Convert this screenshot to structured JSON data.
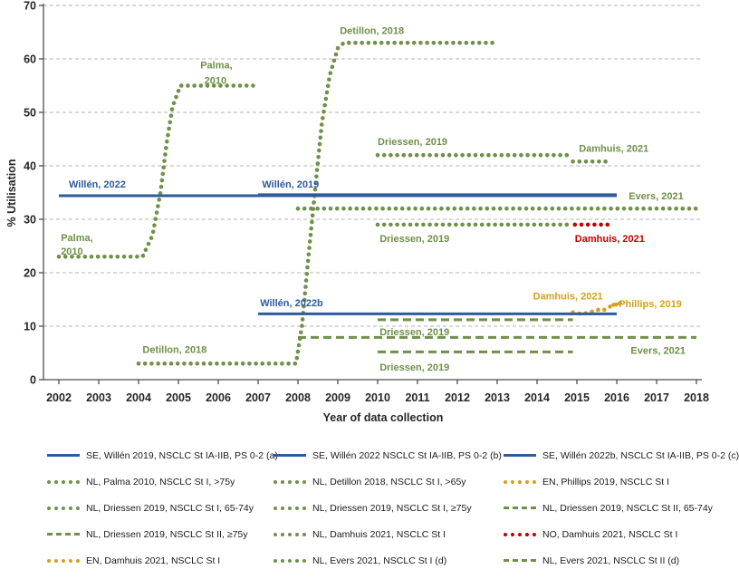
{
  "colors": {
    "blue": "#2E5B9C",
    "green": "#6F9048",
    "red": "#C00000",
    "orange": "#D3A01E",
    "grid": "#B3B3B3",
    "axis": "#4D4D4D",
    "text": "#262626"
  },
  "chart_data": {
    "type": "line",
    "title": "",
    "xlabel": "Year of data collection",
    "ylabel": "% Utilisation",
    "xlim": [
      2002,
      2018
    ],
    "ylim": [
      0,
      70
    ],
    "x_ticks": [
      2002,
      2003,
      2004,
      2005,
      2006,
      2007,
      2008,
      2009,
      2010,
      2011,
      2012,
      2013,
      2014,
      2015,
      2016,
      2017,
      2018
    ],
    "y_ticks": [
      0,
      10,
      20,
      30,
      40,
      50,
      60,
      70
    ],
    "grid": "horizontal-dashed",
    "legend_position": "bottom",
    "series": [
      {
        "name": "NL, Evers 2021, NSCLC St I (d)",
        "color": "green",
        "style": "dotted",
        "points": [
          [
            2008,
            32
          ],
          [
            2018,
            32
          ]
        ]
      },
      {
        "name": "NL, Evers 2021, NSCLC St II (d)",
        "color": "green",
        "style": "dashed",
        "points": [
          [
            2008,
            7.9
          ],
          [
            2018,
            7.9
          ]
        ]
      },
      {
        "name": "NL, Palma 2010, NSCLC St I, >75y",
        "color": "green",
        "style": "dotted",
        "points": [
          [
            2002,
            23
          ],
          [
            2004.1,
            23
          ],
          [
            2004.35,
            27
          ],
          [
            2004.55,
            35
          ],
          [
            2004.7,
            44
          ],
          [
            2004.85,
            51
          ],
          [
            2005.05,
            55
          ],
          [
            2007,
            55
          ]
        ]
      },
      {
        "name": "NL, Detillon 2018, NSCLC St I, >65y",
        "color": "green",
        "style": "dotted",
        "points": [
          [
            2004,
            3
          ],
          [
            2007.95,
            3
          ],
          [
            2008.1,
            10
          ],
          [
            2008.25,
            22
          ],
          [
            2008.45,
            37
          ],
          [
            2008.6,
            48
          ],
          [
            2008.8,
            57
          ],
          [
            2009,
            62
          ],
          [
            2009.15,
            63
          ],
          [
            2013,
            63
          ]
        ]
      },
      {
        "name": "NL, Driessen 2019, NSCLC St I, 65-74y",
        "color": "green",
        "style": "dotted",
        "points": [
          [
            2010,
            42
          ],
          [
            2014.85,
            42
          ]
        ]
      },
      {
        "name": "NL, Driessen 2019, NSCLC St I, ≥75y",
        "color": "green",
        "style": "dotted",
        "points": [
          [
            2010,
            29
          ],
          [
            2014.9,
            29
          ]
        ]
      },
      {
        "name": "NL, Driessen 2019, NSCLC St II, 65-74y",
        "color": "green",
        "style": "dashed",
        "points": [
          [
            2010,
            11.2
          ],
          [
            2014.9,
            11.2
          ]
        ]
      },
      {
        "name": "NL, Driessen 2019, NSCLC St II, ≥75y",
        "color": "green",
        "style": "dashed",
        "points": [
          [
            2010,
            5.2
          ],
          [
            2014.9,
            5.2
          ]
        ]
      },
      {
        "name": "NL, Damhuis 2021, NSCLC St I",
        "color": "green",
        "style": "dotted",
        "points": [
          [
            2014.9,
            40.8
          ],
          [
            2015.85,
            40.8
          ]
        ]
      },
      {
        "name": "NO, Damhuis 2021, NSCLC St I",
        "color": "red",
        "style": "dotted",
        "points": [
          [
            2014.95,
            29
          ],
          [
            2015.85,
            29
          ]
        ]
      },
      {
        "name": "EN, Damhuis 2021, NSCLC St I",
        "color": "orange",
        "style": "dotted",
        "points": [
          [
            2014.9,
            12.6
          ],
          [
            2015.1,
            12.3
          ],
          [
            2015.3,
            12.5
          ],
          [
            2015.5,
            13.1
          ],
          [
            2015.65,
            12.9
          ],
          [
            2015.8,
            13.6
          ],
          [
            2016,
            14.1
          ]
        ]
      },
      {
        "name": "EN, Phillips 2019, NSCLC St I",
        "color": "orange",
        "style": "dotted",
        "points": [
          [
            2015.92,
            14.0
          ],
          [
            2016.15,
            14.4
          ]
        ]
      },
      {
        "name": "SE, Willén 2022 NSCLC St IA-IIB, PS 0-2 (b)",
        "color": "blue",
        "style": "solid",
        "points": [
          [
            2002,
            34.4
          ],
          [
            2016,
            34.4
          ]
        ]
      },
      {
        "name": "SE, Willén 2019, NSCLC St IA-IIB, PS 0-2 (a)",
        "color": "blue",
        "style": "solid",
        "points": [
          [
            2007,
            34.6
          ],
          [
            2016,
            34.6
          ]
        ]
      },
      {
        "name": "SE, Willén 2022b, NSCLC St IA-IIB, PS 0-2 (c)",
        "color": "blue",
        "style": "solid",
        "points": [
          [
            2007,
            12.3
          ],
          [
            2016,
            12.3
          ]
        ]
      }
    ],
    "annotations": [
      {
        "text": "Willén, 2022",
        "x": 2002.25,
        "y": 36.6,
        "color": "blue"
      },
      {
        "text": "Willén, 2019",
        "x": 2007.1,
        "y": 36.6,
        "color": "blue"
      },
      {
        "text": "Willén, 2022b",
        "x": 2007.05,
        "y": 14.4,
        "color": "blue"
      },
      {
        "text": "Palma,",
        "x": 2002.05,
        "y": 26.6,
        "color": "green"
      },
      {
        "text": "2010",
        "x": 2002.05,
        "y": 24.1,
        "color": "green"
      },
      {
        "text": "Palma,",
        "x": 2005.55,
        "y": 58.9,
        "color": "green"
      },
      {
        "text": "2010",
        "x": 2005.65,
        "y": 56.0,
        "color": "green"
      },
      {
        "text": "Detillon, 2018",
        "x": 2009.05,
        "y": 65.3,
        "color": "green"
      },
      {
        "text": "Detillon, 2018",
        "x": 2004.1,
        "y": 5.7,
        "color": "green"
      },
      {
        "text": "Driessen, 2019",
        "x": 2010.0,
        "y": 44.6,
        "color": "green"
      },
      {
        "text": "Damhuis, 2021",
        "x": 2015.05,
        "y": 43.3,
        "color": "green"
      },
      {
        "text": "Evers, 2021",
        "x": 2016.3,
        "y": 34.4,
        "color": "green"
      },
      {
        "text": "Driessen, 2019",
        "x": 2010.05,
        "y": 26.4,
        "color": "green"
      },
      {
        "text": "Damhuis, 2021",
        "x": 2014.95,
        "y": 26.4,
        "color": "red"
      },
      {
        "text": "Damhuis, 2021",
        "x": 2013.9,
        "y": 15.7,
        "color": "orange"
      },
      {
        "text": "Phillips, 2019",
        "x": 2016.05,
        "y": 14.2,
        "color": "orange"
      },
      {
        "text": "Driessen, 2019",
        "x": 2010.05,
        "y": 9.0,
        "color": "green"
      },
      {
        "text": "Evers, 2021",
        "x": 2016.35,
        "y": 5.5,
        "color": "green"
      },
      {
        "text": "Driessen, 2019",
        "x": 2010.05,
        "y": 2.4,
        "color": "green"
      }
    ]
  },
  "legend": {
    "items": [
      {
        "label": "SE, Willén 2019, NSCLC St IA-IIB, PS 0-2 (a)",
        "style": "solid",
        "color": "blue"
      },
      {
        "label": "SE, Willén 2022 NSCLC St IA-IIB, PS 0-2 (b)",
        "style": "solid",
        "color": "blue"
      },
      {
        "label": "SE, Willén 2022b, NSCLC St IA-IIB, PS 0-2 (c)",
        "style": "solid",
        "color": "blue"
      },
      {
        "label": "NL, Palma 2010, NSCLC St I, >75y",
        "style": "dotted",
        "color": "green"
      },
      {
        "label": "NL, Detillon 2018, NSCLC St I, >65y",
        "style": "dotted",
        "color": "green"
      },
      {
        "label": "EN, Phillips 2019, NSCLC St I",
        "style": "dotted",
        "color": "orange"
      },
      {
        "label": "NL, Driessen 2019, NSCLC St I, 65-74y",
        "style": "dotted",
        "color": "green"
      },
      {
        "label": "NL, Driessen 2019, NSCLC St I, ≥75y",
        "style": "dotted",
        "color": "green"
      },
      {
        "label": "NL, Driessen 2019, NSCLC St II, 65-74y",
        "style": "dashed",
        "color": "green"
      },
      {
        "label": "NL, Driessen 2019, NSCLC St II, ≥75y",
        "style": "dashed",
        "color": "green"
      },
      {
        "label": "NL, Damhuis 2021, NSCLC St I",
        "style": "dotted",
        "color": "green"
      },
      {
        "label": "NO, Damhuis 2021, NSCLC St I",
        "style": "dotted",
        "color": "red"
      },
      {
        "label": "EN, Damhuis 2021, NSCLC St I",
        "style": "dotted",
        "color": "orange"
      },
      {
        "label": "NL, Evers 2021, NSCLC St I (d)",
        "style": "dotted",
        "color": "green"
      },
      {
        "label": "NL, Evers 2021, NSCLC St II (d)",
        "style": "dashed",
        "color": "green"
      }
    ]
  }
}
